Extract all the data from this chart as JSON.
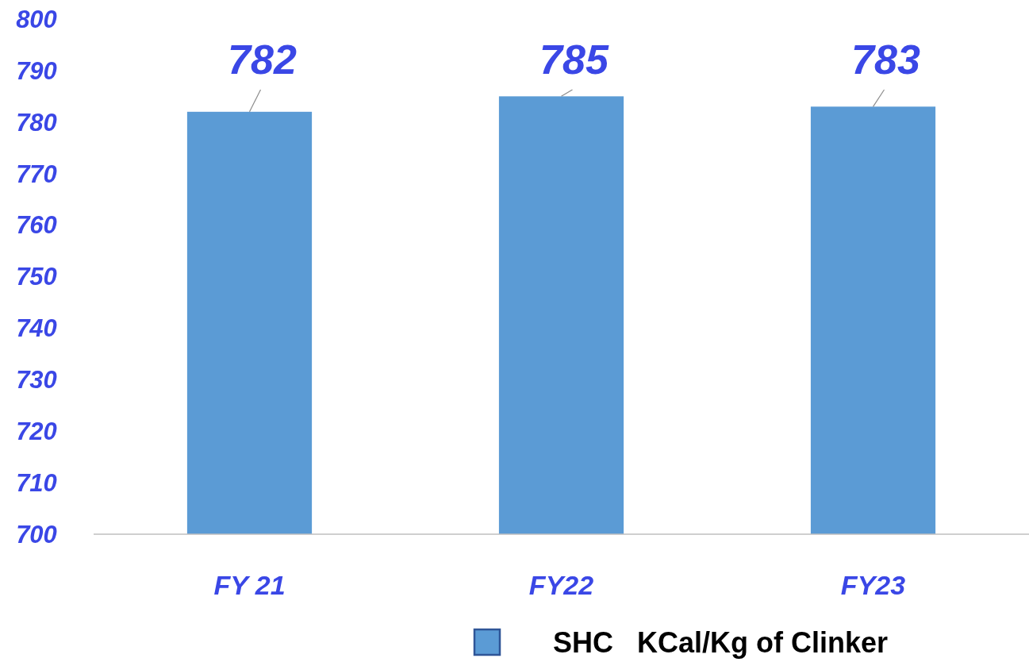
{
  "chart_data": {
    "type": "bar",
    "categories": [
      "FY 21",
      "FY22",
      "FY23"
    ],
    "series": [
      {
        "name": "SHC   KCal/Kg of Clinker",
        "color": "#5b9bd5",
        "values": [
          782,
          785,
          783
        ]
      }
    ],
    "ylim": [
      700,
      800
    ],
    "yticks": [
      700,
      710,
      720,
      730,
      740,
      750,
      760,
      770,
      780,
      790,
      800
    ],
    "grid": false,
    "legend": "bottom",
    "data_labels": true
  }
}
